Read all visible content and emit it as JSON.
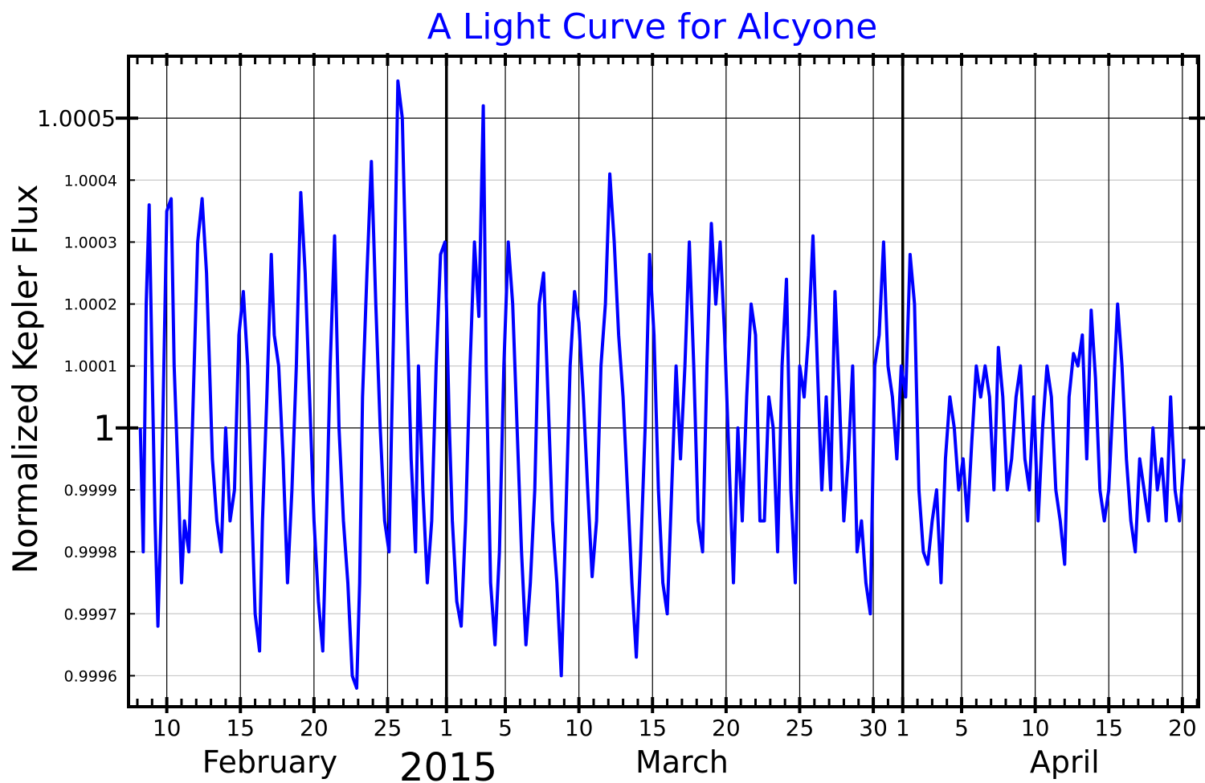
{
  "chart_data": {
    "type": "line",
    "title": "A Light Curve for Alcyone",
    "title_color": "#0000ff",
    "ylabel": "Normalized Kepler Flux",
    "xlabel": "",
    "year_label": "2015",
    "series_color": "#0000ff",
    "ylim": [
      0.99955,
      1.0006
    ],
    "xlim": [
      "2015-02-07.4",
      "2015-04-21.1"
    ],
    "grid": true,
    "y_ticks_major": [
      {
        "value": 1.0005,
        "label": "1.0005"
      },
      {
        "value": 1.0,
        "label": "1"
      }
    ],
    "y_ticks_minor": [
      {
        "value": 1.0004,
        "label": "1.0004"
      },
      {
        "value": 1.0003,
        "label": "1.0003"
      },
      {
        "value": 1.0002,
        "label": "1.0002"
      },
      {
        "value": 1.0001,
        "label": "1.0001"
      },
      {
        "value": 0.9999,
        "label": "0.9999"
      },
      {
        "value": 0.9998,
        "label": "0.9998"
      },
      {
        "value": 0.9997,
        "label": "0.9997"
      },
      {
        "value": 0.9996,
        "label": "0.9996"
      }
    ],
    "x_ticks": [
      {
        "date": "2015-02-10",
        "label": "10"
      },
      {
        "date": "2015-02-15",
        "label": "15"
      },
      {
        "date": "2015-02-20",
        "label": "20"
      },
      {
        "date": "2015-02-25",
        "label": "25"
      },
      {
        "date": "2015-03-01",
        "label": "1"
      },
      {
        "date": "2015-03-05",
        "label": "5"
      },
      {
        "date": "2015-03-10",
        "label": "10"
      },
      {
        "date": "2015-03-15",
        "label": "15"
      },
      {
        "date": "2015-03-20",
        "label": "20"
      },
      {
        "date": "2015-03-25",
        "label": "25"
      },
      {
        "date": "2015-03-30",
        "label": "30"
      },
      {
        "date": "2015-04-01",
        "label": "1"
      },
      {
        "date": "2015-04-05",
        "label": "5"
      },
      {
        "date": "2015-04-10",
        "label": "10"
      },
      {
        "date": "2015-04-15",
        "label": "15"
      },
      {
        "date": "2015-04-20",
        "label": "20"
      }
    ],
    "month_boundaries": [
      "2015-03-01",
      "2015-04-01"
    ],
    "months": [
      {
        "label": "February",
        "center_date": "2015-02-17"
      },
      {
        "label": "March",
        "center_date": "2015-03-17"
      },
      {
        "label": "April",
        "center_date": "2015-04-12"
      }
    ],
    "series": [
      {
        "x": [
          "2015-02-08.2",
          "2015-02-08.4",
          "2015-02-08.6",
          "2015-02-08.8",
          "2015-02-09.0",
          "2015-02-09.2",
          "2015-02-09.4",
          "2015-02-09.6",
          "2015-02-09.8",
          "2015-02-10.0",
          "2015-02-10.3",
          "2015-02-10.5",
          "2015-02-10.8",
          "2015-02-11.0",
          "2015-02-11.2",
          "2015-02-11.5",
          "2015-02-11.8",
          "2015-02-12.1",
          "2015-02-12.4",
          "2015-02-12.7",
          "2015-02-12.9",
          "2015-02-13.1",
          "2015-02-13.4",
          "2015-02-13.7",
          "2015-02-14.0",
          "2015-02-14.3",
          "2015-02-14.6",
          "2015-02-14.9",
          "2015-02-15.2",
          "2015-02-15.5",
          "2015-02-15.8",
          "2015-02-16.0",
          "2015-02-16.3",
          "2015-02-16.5",
          "2015-02-16.8",
          "2015-02-17.1",
          "2015-02-17.3",
          "2015-02-17.6",
          "2015-02-17.9",
          "2015-02-18.2",
          "2015-02-18.5",
          "2015-02-18.8",
          "2015-02-19.1",
          "2015-02-19.4",
          "2015-02-19.7",
          "2015-02-20.0",
          "2015-02-20.3",
          "2015-02-20.6",
          "2015-02-20.9",
          "2015-02-21.1",
          "2015-02-21.4",
          "2015-02-21.7",
          "2015-02-22.0",
          "2015-02-22.3",
          "2015-02-22.6",
          "2015-02-22.9",
          "2015-02-23.1",
          "2015-02-23.3",
          "2015-02-23.6",
          "2015-02-23.9",
          "2015-02-24.2",
          "2015-02-24.5",
          "2015-02-24.8",
          "2015-02-25.1",
          "2015-02-25.4",
          "2015-02-25.7",
          "2015-02-26.0",
          "2015-02-26.3",
          "2015-02-26.6",
          "2015-02-26.9",
          "2015-02-27.1",
          "2015-02-27.4",
          "2015-02-27.7",
          "2015-02-28.0",
          "2015-02-28.3",
          "2015-02-28.6",
          "2015-02-28.9",
          "2015-03-01.2",
          "2015-03-01.4",
          "2015-03-01.7",
          "2015-03-02.0",
          "2015-03-02.3",
          "2015-03-02.6",
          "2015-03-02.9",
          "2015-03-03.2",
          "2015-03-03.5",
          "2015-03-03.7",
          "2015-03-04.0",
          "2015-03-04.3",
          "2015-03-04.6",
          "2015-03-04.9",
          "2015-03-05.2",
          "2015-03-05.5",
          "2015-03-05.8",
          "2015-03-06.1",
          "2015-03-06.4",
          "2015-03-06.7",
          "2015-03-07.0",
          "2015-03-07.3",
          "2015-03-07.6",
          "2015-03-07.9",
          "2015-03-08.2",
          "2015-03-08.5",
          "2015-03-08.8",
          "2015-03-09.1",
          "2015-03-09.4",
          "2015-03-09.7",
          "2015-03-10.0",
          "2015-03-10.3",
          "2015-03-10.6",
          "2015-03-10.9",
          "2015-03-11.2",
          "2015-03-11.5",
          "2015-03-11.8",
          "2015-03-12.1",
          "2015-03-12.4",
          "2015-03-12.7",
          "2015-03-13.0",
          "2015-03-13.3",
          "2015-03-13.6",
          "2015-03-13.9",
          "2015-03-14.2",
          "2015-03-14.5",
          "2015-03-14.8",
          "2015-03-15.1",
          "2015-03-15.4",
          "2015-03-15.7",
          "2015-03-16.0",
          "2015-03-16.3",
          "2015-03-16.6",
          "2015-03-16.9",
          "2015-03-17.2",
          "2015-03-17.5",
          "2015-03-17.8",
          "2015-03-18.1",
          "2015-03-18.4",
          "2015-03-18.7",
          "2015-03-19.0",
          "2015-03-19.3",
          "2015-03-19.6",
          "2015-03-19.9",
          "2015-03-20.2",
          "2015-03-20.5",
          "2015-03-20.8",
          "2015-03-21.1",
          "2015-03-21.4",
          "2015-03-21.7",
          "2015-03-22.0",
          "2015-03-22.3",
          "2015-03-22.6",
          "2015-03-22.9",
          "2015-03-23.2",
          "2015-03-23.5",
          "2015-03-23.8",
          "2015-03-24.1",
          "2015-03-24.4",
          "2015-03-24.7",
          "2015-03-25.0",
          "2015-03-25.3",
          "2015-03-25.6",
          "2015-03-25.9",
          "2015-03-26.2",
          "2015-03-26.5",
          "2015-03-26.8",
          "2015-03-27.1",
          "2015-03-27.4",
          "2015-03-27.7",
          "2015-03-28.0",
          "2015-03-28.3",
          "2015-03-28.6",
          "2015-03-28.9",
          "2015-03-29.2",
          "2015-03-29.5",
          "2015-03-29.8",
          "2015-03-30.1",
          "2015-03-30.4",
          "2015-03-30.7",
          "2015-03-31.0",
          "2015-03-31.3",
          "2015-03-31.6",
          "2015-03-31.9",
          "2015-04-01.2",
          "2015-04-01.5",
          "2015-04-01.8",
          "2015-04-02.1",
          "2015-04-02.4",
          "2015-04-02.7",
          "2015-04-03.0",
          "2015-04-03.3",
          "2015-04-03.6",
          "2015-04-03.9",
          "2015-04-04.2",
          "2015-04-04.5",
          "2015-04-04.8",
          "2015-04-05.1",
          "2015-04-05.4",
          "2015-04-05.7",
          "2015-04-06.0",
          "2015-04-06.3",
          "2015-04-06.6",
          "2015-04-06.9",
          "2015-04-07.2",
          "2015-04-07.5",
          "2015-04-07.8",
          "2015-04-08.1",
          "2015-04-08.4",
          "2015-04-08.7",
          "2015-04-09.0",
          "2015-04-09.3",
          "2015-04-09.6",
          "2015-04-09.9",
          "2015-04-10.2",
          "2015-04-10.5",
          "2015-04-10.8",
          "2015-04-11.1",
          "2015-04-11.4",
          "2015-04-11.7",
          "2015-04-12.0",
          "2015-04-12.3",
          "2015-04-12.6",
          "2015-04-12.9",
          "2015-04-13.2",
          "2015-04-13.5",
          "2015-04-13.8",
          "2015-04-14.1",
          "2015-04-14.4",
          "2015-04-14.7",
          "2015-04-15.0",
          "2015-04-15.3",
          "2015-04-15.6",
          "2015-04-15.9",
          "2015-04-16.2",
          "2015-04-16.5",
          "2015-04-16.8",
          "2015-04-17.1",
          "2015-04-17.4",
          "2015-04-17.7",
          "2015-04-18.0",
          "2015-04-18.3",
          "2015-04-18.6",
          "2015-04-18.9",
          "2015-04-19.2",
          "2015-04-19.5",
          "2015-04-19.8",
          "2015-04-20.1"
        ],
        "y": [
          1.0,
          0.9998,
          1.0002,
          1.00036,
          1.0001,
          0.99985,
          0.99968,
          0.99985,
          1.0001,
          1.00035,
          1.00037,
          1.0001,
          0.9999,
          0.99975,
          0.99985,
          0.9998,
          1.00005,
          1.0003,
          1.00037,
          1.00025,
          1.0001,
          0.99995,
          0.99985,
          0.9998,
          1.0,
          0.99985,
          0.9999,
          1.00015,
          1.00022,
          1.0001,
          0.99985,
          0.9997,
          0.99964,
          0.99985,
          1.00005,
          1.00028,
          1.00015,
          1.0001,
          0.99995,
          0.99975,
          0.9999,
          1.0001,
          1.00038,
          1.00025,
          1.00005,
          0.99985,
          0.99972,
          0.99964,
          0.9999,
          1.0001,
          1.00031,
          1.0,
          0.99985,
          0.99975,
          0.9996,
          0.99958,
          0.99975,
          1.00005,
          1.00025,
          1.00043,
          1.0002,
          1.0,
          0.99985,
          0.9998,
          1.00015,
          1.00056,
          1.0005,
          1.0002,
          0.99995,
          0.9998,
          1.0001,
          0.9999,
          0.99975,
          0.99985,
          1.0001,
          1.00028,
          1.0003,
          1.0,
          0.99985,
          0.99972,
          0.99968,
          0.99985,
          1.0001,
          1.0003,
          1.00018,
          1.00052,
          1.0001,
          0.99975,
          0.99965,
          0.9998,
          1.0001,
          1.0003,
          1.0002,
          1.0,
          0.9998,
          0.99965,
          0.99975,
          0.9999,
          1.0002,
          1.00025,
          1.00005,
          0.99985,
          0.99975,
          0.9996,
          0.99985,
          1.0001,
          1.00022,
          1.00017,
          1.00005,
          0.9999,
          0.99976,
          0.99985,
          1.0001,
          1.0002,
          1.00041,
          1.0003,
          1.00015,
          1.00005,
          0.9999,
          0.99975,
          0.99963,
          0.9998,
          1.0,
          1.00028,
          1.00015,
          0.9999,
          0.99975,
          0.9997,
          0.9999,
          1.0001,
          0.99995,
          1.0001,
          1.0003,
          1.0001,
          0.99985,
          0.9998,
          1.0001,
          1.00033,
          1.0002,
          1.0003,
          1.00015,
          0.99995,
          0.99975,
          1.0,
          0.99985,
          1.00005,
          1.0002,
          1.00015,
          0.99985,
          0.99985,
          1.00005,
          1.0,
          0.9998,
          1.0001,
          1.00024,
          0.9999,
          0.99975,
          1.0001,
          1.00005,
          1.00015,
          1.00031,
          1.0001,
          0.9999,
          1.00005,
          0.9999,
          1.00022,
          1.00005,
          0.99985,
          0.99995,
          1.0001,
          0.9998,
          0.99985,
          0.99975,
          0.9997,
          1.0001,
          1.00015,
          1.0003,
          1.0001,
          1.00005,
          0.99995,
          1.0001,
          1.00005,
          1.00028,
          1.0002,
          0.9999,
          0.9998,
          0.99978,
          0.99985,
          0.9999,
          0.99975,
          0.99995,
          1.00005,
          1.0,
          0.9999,
          0.99995,
          0.99985,
          0.99998,
          1.0001,
          1.00005,
          1.0001,
          1.00005,
          0.9999,
          1.00013,
          1.00005,
          0.9999,
          0.99995,
          1.00005,
          1.0001,
          0.99995,
          0.9999,
          1.00005,
          0.99985,
          1.0,
          1.0001,
          1.00005,
          0.9999,
          0.99985,
          0.99978,
          1.00005,
          1.00012,
          1.0001,
          1.00015,
          0.99995,
          1.00019,
          1.00008,
          0.9999,
          0.99985,
          0.9999,
          1.00005,
          1.0002,
          1.0001,
          0.99995,
          0.99985,
          0.9998,
          0.99995,
          0.9999,
          0.99985,
          1.0,
          0.9999,
          0.99995,
          0.99985,
          1.00005,
          0.9999,
          0.99985,
          0.99995
        ]
      }
    ]
  }
}
